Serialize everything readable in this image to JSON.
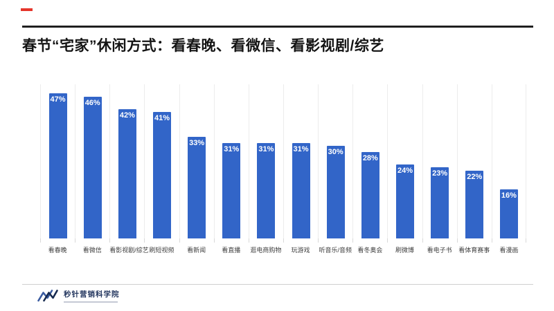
{
  "page": {
    "title": "春节“宅家”休闲方式：看春晚、看微信、看影视剧/综艺"
  },
  "chart_data": {
    "type": "bar",
    "title": "春节“宅家”休闲方式：看春晚、看微信、看影视剧/综艺",
    "categories": [
      "看春晚",
      "看微信",
      "看影视剧/综艺",
      "刷短视频",
      "看新闻",
      "看直播",
      "逛电商购物",
      "玩游戏",
      "听音乐/音频",
      "看冬奥会",
      "刷微博",
      "看电子书",
      "看体育赛事",
      "看漫画"
    ],
    "values": [
      47,
      46,
      42,
      41,
      33,
      31,
      31,
      31,
      30,
      28,
      24,
      23,
      22,
      16
    ],
    "value_labels": [
      "47%",
      "46%",
      "42%",
      "41%",
      "33%",
      "31%",
      "31%",
      "31%",
      "30%",
      "28%",
      "24%",
      "23%",
      "22%",
      "16%"
    ],
    "unit": "%",
    "xlabel": "",
    "ylabel": "",
    "ylim": [
      0,
      50
    ],
    "grid": "vertical-light",
    "legend": "none",
    "bar_color": "#3265C8",
    "value_label_color": "#FFFFFF"
  },
  "footer": {
    "logo_text": "秒针营销科学院"
  },
  "colors": {
    "accent_red": "#E5352B",
    "title_rule": "#1F1F1F",
    "footer_rule": "#CFCFCF",
    "gridline": "#ECECEC",
    "logo_navy_dark": "#16294F",
    "logo_navy_mid": "#3A5BA0"
  }
}
